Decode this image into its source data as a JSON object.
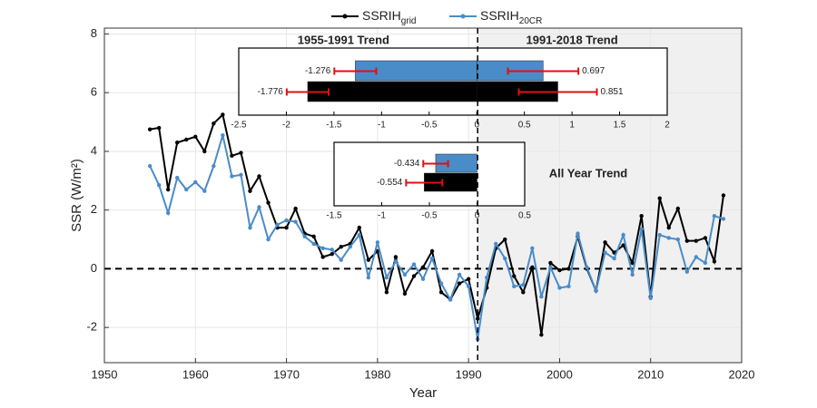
{
  "chart_data": [
    {
      "type": "line",
      "xlabel": "Year",
      "ylabel": "SSR (W/m²)",
      "x": [
        1955,
        1956,
        1957,
        1958,
        1959,
        1960,
        1961,
        1962,
        1963,
        1964,
        1965,
        1966,
        1967,
        1968,
        1969,
        1970,
        1971,
        1972,
        1973,
        1974,
        1975,
        1976,
        1977,
        1978,
        1979,
        1980,
        1981,
        1982,
        1983,
        1984,
        1985,
        1986,
        1987,
        1988,
        1989,
        1990,
        1991,
        1992,
        1993,
        1994,
        1995,
        1996,
        1997,
        1998,
        1999,
        2000,
        2001,
        2002,
        2003,
        2004,
        2005,
        2006,
        2007,
        2008,
        2009,
        2010,
        2011,
        2012,
        2013,
        2014,
        2015,
        2016,
        2017,
        2018
      ],
      "series": [
        {
          "name": "SSRIH",
          "subscript": "grid",
          "color": "#000000",
          "values": [
            4.75,
            4.8,
            2.7,
            4.3,
            4.4,
            4.5,
            4.0,
            4.95,
            5.25,
            3.85,
            3.95,
            2.65,
            3.15,
            2.25,
            1.4,
            1.4,
            2.05,
            1.2,
            1.1,
            0.4,
            0.5,
            0.75,
            0.85,
            1.4,
            0.3,
            0.6,
            -0.8,
            0.4,
            -0.85,
            -0.25,
            0.05,
            0.6,
            -0.8,
            -1.05,
            -0.5,
            -0.35,
            -1.7,
            -0.65,
            0.7,
            1.0,
            -0.25,
            -0.8,
            0.05,
            -2.25,
            0.2,
            -0.05,
            0.0,
            1.1,
            0.0,
            -0.75,
            0.9,
            0.55,
            0.8,
            0.2,
            1.8,
            -0.95,
            2.4,
            1.4,
            2.05,
            0.95,
            0.95,
            1.05,
            0.25,
            2.5
          ]
        },
        {
          "name": "SSRIH",
          "subscript": "20CR",
          "color": "#4a8cc8",
          "values": [
            3.5,
            2.85,
            1.9,
            3.1,
            2.7,
            2.95,
            2.65,
            3.5,
            4.55,
            3.15,
            3.2,
            1.4,
            2.1,
            1.0,
            1.5,
            1.65,
            1.6,
            1.1,
            0.85,
            0.7,
            0.65,
            0.3,
            0.75,
            1.15,
            -0.3,
            0.9,
            -0.3,
            0.25,
            -0.2,
            0.15,
            -0.35,
            0.35,
            -0.5,
            -1.05,
            -0.2,
            -0.6,
            -2.4,
            -0.3,
            0.85,
            0.35,
            -0.6,
            -0.55,
            0.7,
            -0.95,
            0.05,
            -0.65,
            -0.6,
            1.2,
            0.05,
            -0.75,
            0.55,
            0.35,
            1.15,
            -0.2,
            1.35,
            -1.0,
            1.15,
            1.05,
            1.0,
            -0.1,
            0.4,
            0.2,
            1.8,
            1.7
          ]
        }
      ],
      "xlim": [
        1950,
        2020
      ],
      "xticks": [
        1950,
        1960,
        1970,
        1980,
        1990,
        2000,
        2010,
        2020
      ],
      "ylim": [
        -3.2,
        8.2
      ],
      "yticks": [
        -2,
        0,
        2,
        4,
        6,
        8
      ],
      "grid": true,
      "vline": 1991,
      "hline": 0,
      "shade_from": 1991
    },
    {
      "type": "barh",
      "titles": [
        "1955-1991 Trend",
        "1991-2018 Trend"
      ],
      "xlim": [
        -2.5,
        2
      ],
      "xticks": [
        -2.5,
        -2,
        -1.5,
        -1,
        -0.5,
        0,
        0.5,
        1,
        1.5,
        2
      ],
      "series": [
        {
          "color": "#4a8cc8",
          "values": [
            -1.276,
            0.697
          ],
          "errors": [
            0.22,
            0.37
          ]
        },
        {
          "color": "#000000",
          "values": [
            -1.776,
            0.851
          ],
          "errors": [
            0.22,
            0.41
          ]
        }
      ]
    },
    {
      "type": "barh",
      "title": "All Year Trend",
      "xlim": [
        -1.5,
        0.5
      ],
      "xticks": [
        -1.5,
        -1,
        -0.5,
        0,
        0.5
      ],
      "series": [
        {
          "color": "#4a8cc8",
          "values": [
            -0.434
          ],
          "errors": [
            0.13
          ]
        },
        {
          "color": "#000000",
          "values": [
            -0.554
          ],
          "errors": [
            0.19
          ]
        }
      ]
    }
  ]
}
